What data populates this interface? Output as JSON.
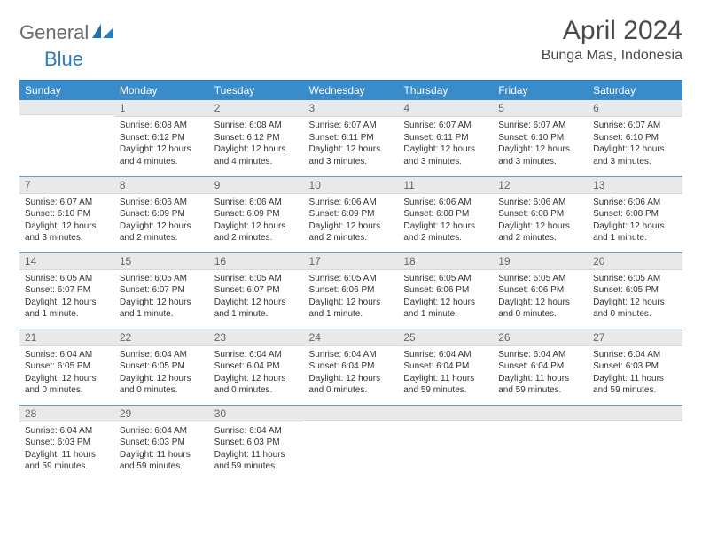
{
  "brand": {
    "part1": "General",
    "part2": "Blue"
  },
  "title": "April 2024",
  "location": "Bunga Mas, Indonesia",
  "colors": {
    "header_bg": "#3a8bc9",
    "header_text": "#ffffff",
    "daynum_bg": "#e9e9e9",
    "row_border": "#6b9bc4",
    "brand_gray": "#6b6b6b",
    "brand_blue": "#2b7bbf",
    "title_color": "#4a4a4a",
    "body_text": "#333333",
    "page_bg": "#ffffff"
  },
  "typography": {
    "title_fontsize": 30,
    "location_fontsize": 16,
    "weekday_fontsize": 12,
    "daynum_fontsize": 12,
    "body_fontsize": 10
  },
  "weekdays": [
    "Sunday",
    "Monday",
    "Tuesday",
    "Wednesday",
    "Thursday",
    "Friday",
    "Saturday"
  ],
  "weeks": [
    [
      {
        "n": "",
        "sr": "",
        "ss": "",
        "dl": ""
      },
      {
        "n": "1",
        "sr": "Sunrise: 6:08 AM",
        "ss": "Sunset: 6:12 PM",
        "dl": "Daylight: 12 hours and 4 minutes."
      },
      {
        "n": "2",
        "sr": "Sunrise: 6:08 AM",
        "ss": "Sunset: 6:12 PM",
        "dl": "Daylight: 12 hours and 4 minutes."
      },
      {
        "n": "3",
        "sr": "Sunrise: 6:07 AM",
        "ss": "Sunset: 6:11 PM",
        "dl": "Daylight: 12 hours and 3 minutes."
      },
      {
        "n": "4",
        "sr": "Sunrise: 6:07 AM",
        "ss": "Sunset: 6:11 PM",
        "dl": "Daylight: 12 hours and 3 minutes."
      },
      {
        "n": "5",
        "sr": "Sunrise: 6:07 AM",
        "ss": "Sunset: 6:10 PM",
        "dl": "Daylight: 12 hours and 3 minutes."
      },
      {
        "n": "6",
        "sr": "Sunrise: 6:07 AM",
        "ss": "Sunset: 6:10 PM",
        "dl": "Daylight: 12 hours and 3 minutes."
      }
    ],
    [
      {
        "n": "7",
        "sr": "Sunrise: 6:07 AM",
        "ss": "Sunset: 6:10 PM",
        "dl": "Daylight: 12 hours and 3 minutes."
      },
      {
        "n": "8",
        "sr": "Sunrise: 6:06 AM",
        "ss": "Sunset: 6:09 PM",
        "dl": "Daylight: 12 hours and 2 minutes."
      },
      {
        "n": "9",
        "sr": "Sunrise: 6:06 AM",
        "ss": "Sunset: 6:09 PM",
        "dl": "Daylight: 12 hours and 2 minutes."
      },
      {
        "n": "10",
        "sr": "Sunrise: 6:06 AM",
        "ss": "Sunset: 6:09 PM",
        "dl": "Daylight: 12 hours and 2 minutes."
      },
      {
        "n": "11",
        "sr": "Sunrise: 6:06 AM",
        "ss": "Sunset: 6:08 PM",
        "dl": "Daylight: 12 hours and 2 minutes."
      },
      {
        "n": "12",
        "sr": "Sunrise: 6:06 AM",
        "ss": "Sunset: 6:08 PM",
        "dl": "Daylight: 12 hours and 2 minutes."
      },
      {
        "n": "13",
        "sr": "Sunrise: 6:06 AM",
        "ss": "Sunset: 6:08 PM",
        "dl": "Daylight: 12 hours and 1 minute."
      }
    ],
    [
      {
        "n": "14",
        "sr": "Sunrise: 6:05 AM",
        "ss": "Sunset: 6:07 PM",
        "dl": "Daylight: 12 hours and 1 minute."
      },
      {
        "n": "15",
        "sr": "Sunrise: 6:05 AM",
        "ss": "Sunset: 6:07 PM",
        "dl": "Daylight: 12 hours and 1 minute."
      },
      {
        "n": "16",
        "sr": "Sunrise: 6:05 AM",
        "ss": "Sunset: 6:07 PM",
        "dl": "Daylight: 12 hours and 1 minute."
      },
      {
        "n": "17",
        "sr": "Sunrise: 6:05 AM",
        "ss": "Sunset: 6:06 PM",
        "dl": "Daylight: 12 hours and 1 minute."
      },
      {
        "n": "18",
        "sr": "Sunrise: 6:05 AM",
        "ss": "Sunset: 6:06 PM",
        "dl": "Daylight: 12 hours and 1 minute."
      },
      {
        "n": "19",
        "sr": "Sunrise: 6:05 AM",
        "ss": "Sunset: 6:06 PM",
        "dl": "Daylight: 12 hours and 0 minutes."
      },
      {
        "n": "20",
        "sr": "Sunrise: 6:05 AM",
        "ss": "Sunset: 6:05 PM",
        "dl": "Daylight: 12 hours and 0 minutes."
      }
    ],
    [
      {
        "n": "21",
        "sr": "Sunrise: 6:04 AM",
        "ss": "Sunset: 6:05 PM",
        "dl": "Daylight: 12 hours and 0 minutes."
      },
      {
        "n": "22",
        "sr": "Sunrise: 6:04 AM",
        "ss": "Sunset: 6:05 PM",
        "dl": "Daylight: 12 hours and 0 minutes."
      },
      {
        "n": "23",
        "sr": "Sunrise: 6:04 AM",
        "ss": "Sunset: 6:04 PM",
        "dl": "Daylight: 12 hours and 0 minutes."
      },
      {
        "n": "24",
        "sr": "Sunrise: 6:04 AM",
        "ss": "Sunset: 6:04 PM",
        "dl": "Daylight: 12 hours and 0 minutes."
      },
      {
        "n": "25",
        "sr": "Sunrise: 6:04 AM",
        "ss": "Sunset: 6:04 PM",
        "dl": "Daylight: 11 hours and 59 minutes."
      },
      {
        "n": "26",
        "sr": "Sunrise: 6:04 AM",
        "ss": "Sunset: 6:04 PM",
        "dl": "Daylight: 11 hours and 59 minutes."
      },
      {
        "n": "27",
        "sr": "Sunrise: 6:04 AM",
        "ss": "Sunset: 6:03 PM",
        "dl": "Daylight: 11 hours and 59 minutes."
      }
    ],
    [
      {
        "n": "28",
        "sr": "Sunrise: 6:04 AM",
        "ss": "Sunset: 6:03 PM",
        "dl": "Daylight: 11 hours and 59 minutes."
      },
      {
        "n": "29",
        "sr": "Sunrise: 6:04 AM",
        "ss": "Sunset: 6:03 PM",
        "dl": "Daylight: 11 hours and 59 minutes."
      },
      {
        "n": "30",
        "sr": "Sunrise: 6:04 AM",
        "ss": "Sunset: 6:03 PM",
        "dl": "Daylight: 11 hours and 59 minutes."
      },
      {
        "n": "",
        "sr": "",
        "ss": "",
        "dl": ""
      },
      {
        "n": "",
        "sr": "",
        "ss": "",
        "dl": ""
      },
      {
        "n": "",
        "sr": "",
        "ss": "",
        "dl": ""
      },
      {
        "n": "",
        "sr": "",
        "ss": "",
        "dl": ""
      }
    ]
  ]
}
